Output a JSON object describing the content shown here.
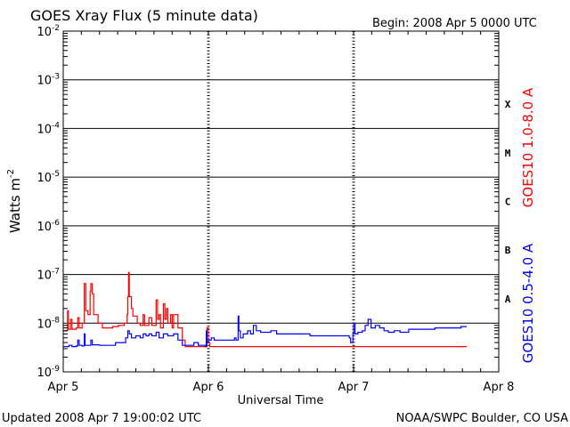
{
  "chart_data": {
    "type": "line",
    "title": "GOES Xray Flux (5 minute data)",
    "begin_label": "Begin:  2008 Apr 5 0000 UTC",
    "xlabel": "Universal Time",
    "ylabel": "Watts m",
    "ylabel_sup": "-2",
    "y_scale": "log",
    "ylim": [
      1e-09,
      0.01
    ],
    "xlim_days": [
      0,
      3
    ],
    "x_ticks": [
      {
        "label": "Apr 5",
        "day": 0
      },
      {
        "label": "Apr 6",
        "day": 1
      },
      {
        "label": "Apr 7",
        "day": 2
      },
      {
        "label": "Apr 8",
        "day": 3
      }
    ],
    "y_ticks": [
      {
        "base": "10",
        "exp": "-9",
        "value": 1e-09
      },
      {
        "base": "10",
        "exp": "-8",
        "value": 1e-08
      },
      {
        "base": "10",
        "exp": "-7",
        "value": 1e-07
      },
      {
        "base": "10",
        "exp": "-6",
        "value": 1e-06
      },
      {
        "base": "10",
        "exp": "-5",
        "value": 1e-05
      },
      {
        "base": "10",
        "exp": "-4",
        "value": 0.0001
      },
      {
        "base": "10",
        "exp": "-3",
        "value": 0.001
      },
      {
        "base": "10",
        "exp": "-2",
        "value": 0.01
      }
    ],
    "flare_classes": [
      {
        "label": "A",
        "lower": 1e-08
      },
      {
        "label": "B",
        "lower": 1e-07
      },
      {
        "label": "C",
        "lower": 1e-06
      },
      {
        "label": "M",
        "lower": 1e-05
      },
      {
        "label": "X",
        "lower": 0.0001
      }
    ],
    "series": [
      {
        "name": "GOES10 1.0-8.0 A",
        "color": "#ff0000",
        "points": [
          [
            0.0,
            7e-09
          ],
          [
            0.02,
            7e-09
          ],
          [
            0.03,
            1.8e-08
          ],
          [
            0.035,
            7.5e-09
          ],
          [
            0.05,
            1.2e-08
          ],
          [
            0.06,
            7.5e-09
          ],
          [
            0.09,
            8e-09
          ],
          [
            0.1,
            1.3e-08
          ],
          [
            0.11,
            8e-09
          ],
          [
            0.13,
            1e-08
          ],
          [
            0.145,
            6.5e-08
          ],
          [
            0.155,
            1.8e-08
          ],
          [
            0.17,
            1.5e-08
          ],
          [
            0.185,
            4.5e-08
          ],
          [
            0.19,
            6.5e-08
          ],
          [
            0.2,
            4e-08
          ],
          [
            0.21,
            1.5e-08
          ],
          [
            0.24,
            1e-08
          ],
          [
            0.27,
            8e-09
          ],
          [
            0.31,
            8e-09
          ],
          [
            0.34,
            8.5e-09
          ],
          [
            0.38,
            9e-09
          ],
          [
            0.42,
            1e-08
          ],
          [
            0.44,
            1.5e-08
          ],
          [
            0.445,
            3.5e-08
          ],
          [
            0.45,
            1.1e-07
          ],
          [
            0.455,
            3.5e-08
          ],
          [
            0.47,
            2e-08
          ],
          [
            0.48,
            1.4e-08
          ],
          [
            0.51,
            1e-08
          ],
          [
            0.53,
            9e-09
          ],
          [
            0.55,
            1.5e-08
          ],
          [
            0.56,
            9e-09
          ],
          [
            0.58,
            9e-09
          ],
          [
            0.59,
            1.3e-08
          ],
          [
            0.61,
            9e-09
          ],
          [
            0.63,
            9e-09
          ],
          [
            0.64,
            3e-08
          ],
          [
            0.65,
            1.2e-08
          ],
          [
            0.66,
            1.5e-08
          ],
          [
            0.67,
            8e-09
          ],
          [
            0.69,
            2.5e-08
          ],
          [
            0.7,
            1.2e-08
          ],
          [
            0.71,
            2e-08
          ],
          [
            0.72,
            1e-08
          ],
          [
            0.74,
            1.5e-08
          ],
          [
            0.75,
            8e-09
          ],
          [
            0.76,
            1.5e-08
          ],
          [
            0.79,
            8e-09
          ],
          [
            0.81,
            8e-09
          ],
          [
            0.82,
            4.5e-09
          ],
          [
            0.84,
            3.3e-09
          ],
          [
            0.98,
            3.3e-09
          ],
          [
            0.99,
            8e-09
          ],
          [
            1.0,
            4e-09
          ],
          [
            1.01,
            3.3e-09
          ],
          [
            1.2,
            3.3e-09
          ],
          [
            1.5,
            3.3e-09
          ],
          [
            2.0,
            3.3e-09
          ],
          [
            2.5,
            3.3e-09
          ],
          [
            2.78,
            3.3e-09
          ]
        ]
      },
      {
        "name": "GOES10 0.5-4.0 A",
        "color": "#0000ff",
        "points": [
          [
            0.0,
            3.3e-09
          ],
          [
            0.04,
            3.5e-09
          ],
          [
            0.06,
            3.3e-09
          ],
          [
            0.09,
            3.4e-09
          ],
          [
            0.1,
            4.5e-09
          ],
          [
            0.11,
            3.5e-09
          ],
          [
            0.13,
            3.4e-09
          ],
          [
            0.145,
            6e-09
          ],
          [
            0.15,
            3.5e-09
          ],
          [
            0.18,
            3.5e-09
          ],
          [
            0.19,
            4.5e-09
          ],
          [
            0.2,
            3.6e-09
          ],
          [
            0.25,
            3.5e-09
          ],
          [
            0.32,
            3.5e-09
          ],
          [
            0.36,
            4e-09
          ],
          [
            0.4,
            4e-09
          ],
          [
            0.43,
            5e-09
          ],
          [
            0.445,
            7e-09
          ],
          [
            0.455,
            6e-09
          ],
          [
            0.47,
            5e-09
          ],
          [
            0.5,
            5.5e-09
          ],
          [
            0.53,
            5e-09
          ],
          [
            0.55,
            6e-09
          ],
          [
            0.57,
            5.5e-09
          ],
          [
            0.59,
            6e-09
          ],
          [
            0.61,
            5.5e-09
          ],
          [
            0.64,
            6.5e-09
          ],
          [
            0.66,
            5e-09
          ],
          [
            0.69,
            6e-09
          ],
          [
            0.72,
            5.5e-09
          ],
          [
            0.76,
            6e-09
          ],
          [
            0.79,
            4.5e-09
          ],
          [
            0.82,
            3.5e-09
          ],
          [
            0.86,
            3.5e-09
          ],
          [
            0.9,
            4e-09
          ],
          [
            0.93,
            3.5e-09
          ],
          [
            0.98,
            3.3e-09
          ],
          [
            0.985,
            7e-09
          ],
          [
            0.99,
            4e-09
          ],
          [
            1.0,
            4.5e-09
          ],
          [
            1.02,
            5e-09
          ],
          [
            1.04,
            4.5e-09
          ],
          [
            1.06,
            4.5e-09
          ],
          [
            1.1,
            4.5e-09
          ],
          [
            1.15,
            4.5e-09
          ],
          [
            1.18,
            5e-09
          ],
          [
            1.19,
            4.5e-09
          ],
          [
            1.2,
            4.5e-09
          ],
          [
            1.205,
            1.4e-08
          ],
          [
            1.21,
            7e-09
          ],
          [
            1.22,
            5e-09
          ],
          [
            1.24,
            6e-09
          ],
          [
            1.27,
            7e-09
          ],
          [
            1.29,
            6e-09
          ],
          [
            1.31,
            9e-09
          ],
          [
            1.33,
            7e-09
          ],
          [
            1.36,
            6.5e-09
          ],
          [
            1.4,
            6.5e-09
          ],
          [
            1.43,
            7e-09
          ],
          [
            1.47,
            6e-09
          ],
          [
            1.5,
            6e-09
          ],
          [
            1.55,
            6e-09
          ],
          [
            1.6,
            6e-09
          ],
          [
            1.7,
            5.5e-09
          ],
          [
            1.8,
            5.5e-09
          ],
          [
            1.9,
            5.5e-09
          ],
          [
            1.97,
            5e-09
          ],
          [
            1.98,
            4e-09
          ],
          [
            1.995,
            6e-09
          ],
          [
            2.0,
            1e-08
          ],
          [
            2.01,
            6e-09
          ],
          [
            2.03,
            6.5e-09
          ],
          [
            2.06,
            7e-09
          ],
          [
            2.08,
            9e-09
          ],
          [
            2.1,
            1.2e-08
          ],
          [
            2.12,
            8e-09
          ],
          [
            2.15,
            9e-09
          ],
          [
            2.18,
            8e-09
          ],
          [
            2.21,
            7e-09
          ],
          [
            2.24,
            6.5e-09
          ],
          [
            2.28,
            7e-09
          ],
          [
            2.32,
            6.5e-09
          ],
          [
            2.38,
            7.5e-09
          ],
          [
            2.44,
            7.5e-09
          ],
          [
            2.5,
            7.5e-09
          ],
          [
            2.56,
            8e-09
          ],
          [
            2.62,
            8e-09
          ],
          [
            2.68,
            8e-09
          ],
          [
            2.74,
            8.5e-09
          ],
          [
            2.78,
            8.5e-09
          ]
        ]
      }
    ]
  },
  "footer": {
    "updated": "Updated 2008 Apr  7 19:00:02 UTC",
    "credit": "NOAA/SWPC Boulder, CO USA"
  }
}
